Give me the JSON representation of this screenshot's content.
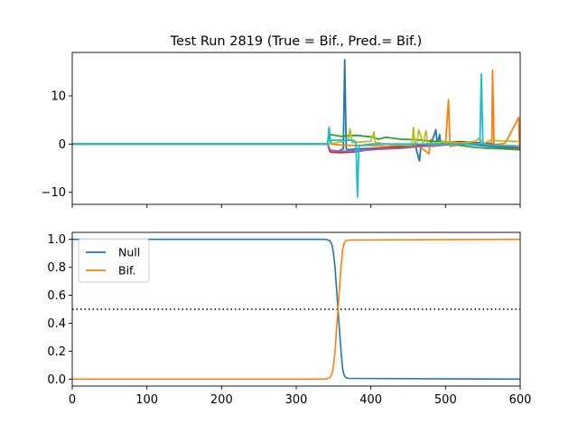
{
  "chart_data": [
    {
      "type": "line",
      "title": "Test Run 2819 (True = Bif., Pred.= Bif.)",
      "xlim": [
        0,
        600
      ],
      "ylim": [
        -12.5,
        19
      ],
      "yticks": [
        -10,
        0,
        10
      ],
      "ytick_labels": [
        "−10",
        "0",
        "10"
      ],
      "xticks": [
        0,
        100,
        200,
        300,
        400,
        500,
        600
      ],
      "series": [
        {
          "color": "#1f77b4",
          "x": [
            0,
            342,
            345,
            350,
            355,
            360,
            363,
            365,
            367,
            370,
            380,
            400,
            420,
            440,
            460,
            465,
            467,
            470,
            480,
            487,
            489,
            492,
            494,
            497,
            500,
            520,
            540,
            560,
            580,
            600
          ],
          "y": [
            0,
            0,
            -1.5,
            -1.3,
            -1.6,
            -1.2,
            -1.0,
            17.5,
            -1.0,
            -1.2,
            -1.0,
            -0.9,
            -0.8,
            -0.6,
            -0.6,
            -3.5,
            -0.5,
            -0.4,
            -0.3,
            3.0,
            -0.3,
            2.0,
            -0.3,
            -0.2,
            -0.2,
            0.1,
            -0.2,
            -0.5,
            -0.7,
            -0.8
          ]
        },
        {
          "color": "#ff7f0e",
          "x": [
            0,
            345,
            360,
            380,
            400,
            420,
            440,
            460,
            478,
            480,
            482,
            500,
            504,
            506,
            520,
            540,
            562,
            563,
            565,
            580,
            598,
            599,
            600
          ],
          "y": [
            0,
            0,
            -0.2,
            -0.3,
            -0.3,
            -0.5,
            -0.4,
            0.0,
            -2.0,
            1.0,
            -0.5,
            -0.2,
            9.2,
            -0.5,
            -0.1,
            0.3,
            0.2,
            15.3,
            -0.2,
            0.2,
            5.5,
            -0.5,
            1.0
          ]
        },
        {
          "color": "#2ca02c",
          "x": [
            0,
            342,
            345,
            360,
            380,
            400,
            410,
            420,
            440,
            460,
            480,
            500,
            520,
            540,
            560,
            580,
            600
          ],
          "y": [
            0,
            0,
            2.0,
            1.6,
            1.8,
            1.5,
            1.0,
            1.4,
            1.0,
            0.9,
            0.6,
            0.5,
            -0.3,
            -0.7,
            -0.9,
            -1.0,
            -1.2
          ]
        },
        {
          "color": "#d62728",
          "x": [
            0,
            342,
            346,
            360,
            380,
            400,
            420,
            440,
            460,
            480,
            500,
            520,
            540,
            560,
            580,
            600
          ],
          "y": [
            0,
            0,
            -1.7,
            -1.8,
            -1.6,
            -1.1,
            -0.8,
            -0.5,
            -0.4,
            0.1,
            0.4,
            0.5,
            0.3,
            0.0,
            -0.5,
            -0.8
          ]
        },
        {
          "color": "#9467bd",
          "x": [
            0,
            342,
            346,
            360,
            380,
            400,
            420,
            440,
            460,
            480,
            500,
            520,
            540,
            560,
            580,
            600
          ],
          "y": [
            0,
            0,
            -1.3,
            -1.5,
            -1.4,
            -1.2,
            -1.0,
            -0.9,
            -0.6,
            -0.4,
            -0.1,
            0.2,
            0.1,
            -0.1,
            -0.4,
            -0.6
          ]
        },
        {
          "color": "#bcbd22",
          "x": [
            0,
            345,
            360,
            370,
            372,
            375,
            400,
            404,
            406,
            430,
            455,
            457,
            459,
            462,
            464,
            470,
            474,
            476,
            500,
            520,
            540,
            545,
            550,
            560,
            600
          ],
          "y": [
            0,
            0,
            0.5,
            1.0,
            3.2,
            0.3,
            0.6,
            2.5,
            0.3,
            -0.2,
            -0.3,
            3.5,
            0.0,
            0.5,
            3.0,
            0.2,
            2.8,
            0.0,
            0.5,
            0.2,
            0.6,
            1.2,
            0.0,
            0.8,
            0.5
          ]
        },
        {
          "color": "#17becf",
          "x": [
            0,
            342,
            344,
            346,
            348,
            360,
            375,
            380,
            382,
            384,
            386,
            400,
            440,
            500,
            540,
            546,
            548,
            550,
            560,
            580,
            600
          ],
          "y": [
            0,
            0,
            3.5,
            0.3,
            0.8,
            0.8,
            0.8,
            0.5,
            -11.0,
            -0.5,
            -0.3,
            0.0,
            0.0,
            0.0,
            0.0,
            0.0,
            14.5,
            0.0,
            -0.2,
            -0.3,
            -0.4
          ]
        }
      ]
    },
    {
      "type": "line",
      "xlim": [
        0,
        600
      ],
      "ylim": [
        -0.05,
        1.05
      ],
      "xticks": [
        0,
        100,
        200,
        300,
        400,
        500,
        600
      ],
      "yticks": [
        0.0,
        0.2,
        0.4,
        0.6,
        0.8,
        1.0
      ],
      "ytick_labels": [
        "0.0",
        "0.2",
        "0.4",
        "0.6",
        "0.8",
        "1.0"
      ],
      "threshold": 0.5,
      "legend_loc": "upper-left",
      "series": [
        {
          "name": "Null",
          "color": "#1f77b4",
          "x": [
            0,
            340,
            345,
            348,
            350,
            352,
            354,
            356,
            358,
            360,
            362,
            364,
            366,
            370,
            600
          ],
          "y": [
            1.0,
            1.0,
            0.99,
            0.96,
            0.9,
            0.8,
            0.65,
            0.5,
            0.35,
            0.2,
            0.08,
            0.03,
            0.012,
            0.005,
            0.0
          ]
        },
        {
          "name": "Bif.",
          "color": "#ff7f0e",
          "x": [
            0,
            340,
            345,
            348,
            350,
            352,
            354,
            356,
            358,
            360,
            362,
            364,
            366,
            370,
            600
          ],
          "y": [
            0.0,
            0.0,
            0.01,
            0.04,
            0.1,
            0.2,
            0.35,
            0.5,
            0.65,
            0.8,
            0.92,
            0.97,
            0.988,
            0.995,
            1.0
          ]
        }
      ]
    }
  ]
}
